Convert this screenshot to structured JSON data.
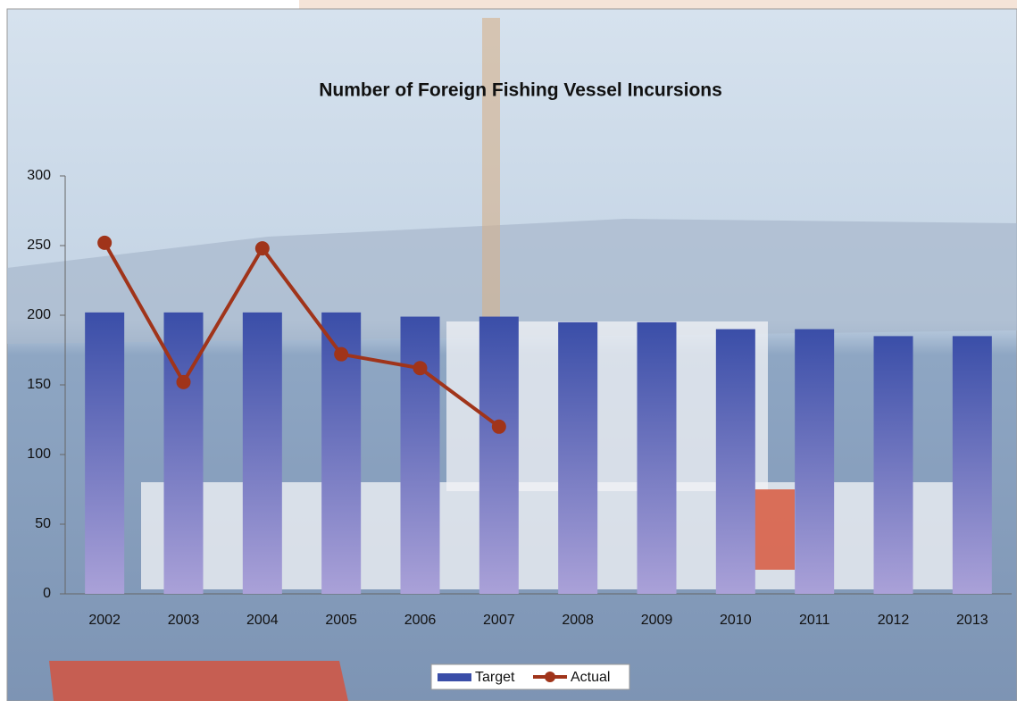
{
  "chart_data": {
    "type": "bar",
    "title": "Number of Foreign Fishing Vessel Incursions",
    "categories": [
      "2002",
      "2003",
      "2004",
      "2005",
      "2006",
      "2007",
      "2008",
      "2009",
      "2010",
      "2011",
      "2012",
      "2013"
    ],
    "series": [
      {
        "name": "Target",
        "type": "bar",
        "color": "#3a4ea8",
        "values": [
          202,
          202,
          202,
          202,
          199,
          199,
          195,
          195,
          190,
          190,
          185,
          185
        ]
      },
      {
        "name": "Actual",
        "type": "line",
        "color": "#a0341a",
        "values": [
          252,
          152,
          248,
          172,
          162,
          120,
          null,
          null,
          null,
          null,
          null,
          null
        ]
      }
    ],
    "ylim": [
      0,
      300
    ],
    "yticks": [
      0,
      50,
      100,
      150,
      200,
      250,
      300
    ],
    "grid": false,
    "legend": "bottom"
  }
}
